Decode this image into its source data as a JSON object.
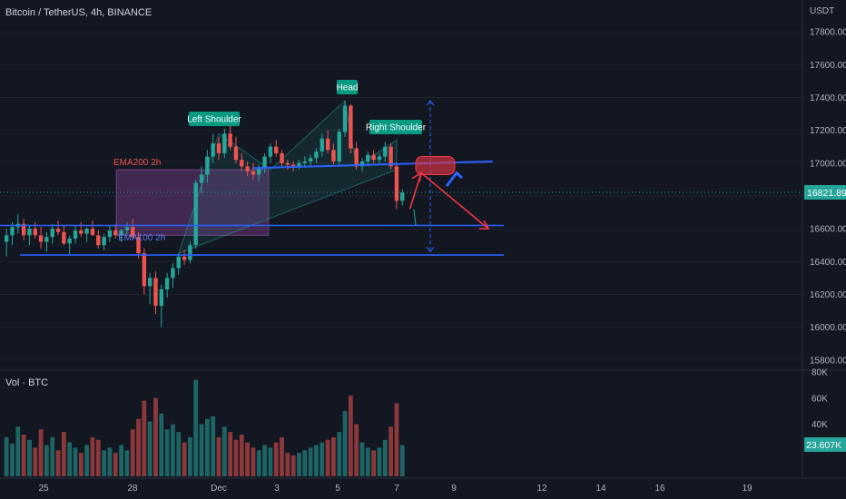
{
  "header": {
    "symbol_title": "Bitcoin / TetherUS, 4h, BINANCE",
    "currency": "USDT"
  },
  "volume_panel": {
    "label": "Vol · BTC",
    "ticks": [
      "80K",
      "60K",
      "40K"
    ],
    "last_value": "23.607K"
  },
  "annotations": {
    "left_shoulder": "Left Shoulder",
    "head": "Head",
    "right_shoulder": "Right Shoulder",
    "ema200": "EMA200 2h",
    "ema100": "EMA100 2h"
  },
  "colors": {
    "background": "#131722",
    "up": "#26a69a",
    "down": "#ef5350",
    "neckline": "#2962ff",
    "arrow": "#f23645",
    "zone": "#7b3f8c"
  },
  "chart_data": {
    "type": "candlestick",
    "price_axis_ticks": [
      17800,
      17600,
      17400,
      17200,
      17000,
      16800,
      16600,
      16400,
      16200,
      16000,
      15800
    ],
    "ylim": [
      15760,
      17950
    ],
    "last_price": 16821.89,
    "last_price_label": "16821.89",
    "x_tick_labels": [
      "25",
      "28",
      "Dec",
      "3",
      "5",
      "7",
      "9",
      "12",
      "14",
      "16",
      "19"
    ],
    "support_levels": [
      16620,
      16440
    ],
    "neckline": [
      16970,
      17010
    ],
    "projection_range": [
      16460,
      17380
    ],
    "volume_range_k": [
      0,
      80
    ],
    "candles": [
      [
        16520,
        16600,
        16430,
        16560,
        30
      ],
      [
        16560,
        16640,
        16500,
        16610,
        25
      ],
      [
        16610,
        16690,
        16570,
        16630,
        38
      ],
      [
        16630,
        16660,
        16530,
        16560,
        32
      ],
      [
        16560,
        16620,
        16500,
        16600,
        28
      ],
      [
        16600,
        16640,
        16540,
        16560,
        22
      ],
      [
        16560,
        16610,
        16480,
        16520,
        36
      ],
      [
        16520,
        16580,
        16460,
        16550,
        24
      ],
      [
        16550,
        16630,
        16510,
        16600,
        30
      ],
      [
        16600,
        16650,
        16560,
        16580,
        20
      ],
      [
        16580,
        16620,
        16500,
        16510,
        34
      ],
      [
        16510,
        16560,
        16440,
        16540,
        26
      ],
      [
        16540,
        16620,
        16510,
        16590,
        22
      ],
      [
        16590,
        16640,
        16550,
        16570,
        18
      ],
      [
        16570,
        16610,
        16520,
        16600,
        24
      ],
      [
        16600,
        16650,
        16560,
        16560,
        30
      ],
      [
        16560,
        16590,
        16480,
        16500,
        28
      ],
      [
        16500,
        16570,
        16470,
        16550,
        20
      ],
      [
        16550,
        16620,
        16520,
        16590,
        22
      ],
      [
        16590,
        16630,
        16540,
        16560,
        18
      ],
      [
        16560,
        16600,
        16520,
        16590,
        24
      ],
      [
        16590,
        16640,
        16560,
        16610,
        20
      ],
      [
        16610,
        16660,
        16540,
        16550,
        36
      ],
      [
        16550,
        16580,
        16420,
        16450,
        44
      ],
      [
        16450,
        16480,
        16200,
        16250,
        58
      ],
      [
        16250,
        16330,
        16140,
        16300,
        42
      ],
      [
        16300,
        16340,
        16080,
        16130,
        60
      ],
      [
        16130,
        16260,
        16000,
        16230,
        48
      ],
      [
        16230,
        16330,
        16180,
        16300,
        36
      ],
      [
        16300,
        16390,
        16240,
        16360,
        40
      ],
      [
        16360,
        16450,
        16320,
        16430,
        34
      ],
      [
        16430,
        16470,
        16380,
        16410,
        26
      ],
      [
        16410,
        16520,
        16390,
        16500,
        30
      ],
      [
        16500,
        16900,
        16480,
        16880,
        74
      ],
      [
        16880,
        16980,
        16820,
        16930,
        40
      ],
      [
        16930,
        17080,
        16880,
        17040,
        44
      ],
      [
        17040,
        17180,
        17000,
        17120,
        46
      ],
      [
        17120,
        17160,
        17020,
        17060,
        30
      ],
      [
        17060,
        17210,
        17030,
        17180,
        38
      ],
      [
        17180,
        17230,
        17080,
        17100,
        34
      ],
      [
        17100,
        17160,
        17000,
        17020,
        28
      ],
      [
        17020,
        17060,
        16950,
        16980,
        32
      ],
      [
        16980,
        17010,
        16920,
        16950,
        26
      ],
      [
        16950,
        17000,
        16900,
        16930,
        22
      ],
      [
        16930,
        16990,
        16890,
        16970,
        20
      ],
      [
        16970,
        17060,
        16940,
        17040,
        24
      ],
      [
        17040,
        17120,
        17000,
        17100,
        22
      ],
      [
        17100,
        17140,
        17040,
        17060,
        26
      ],
      [
        17060,
        17080,
        16980,
        17000,
        30
      ],
      [
        17000,
        17020,
        16960,
        16990,
        18
      ],
      [
        16990,
        17010,
        16950,
        16980,
        16
      ],
      [
        16980,
        17020,
        16960,
        17000,
        18
      ],
      [
        17000,
        17040,
        16970,
        17010,
        20
      ],
      [
        17010,
        17050,
        16980,
        17030,
        22
      ],
      [
        17030,
        17090,
        17000,
        17070,
        24
      ],
      [
        17070,
        17180,
        17040,
        17150,
        26
      ],
      [
        17150,
        17200,
        17060,
        17080,
        28
      ],
      [
        17080,
        17120,
        16990,
        17010,
        30
      ],
      [
        17010,
        17210,
        16990,
        17190,
        34
      ],
      [
        17190,
        17380,
        17160,
        17350,
        50
      ],
      [
        17350,
        17360,
        17060,
        17090,
        62
      ],
      [
        17090,
        17130,
        16960,
        16980,
        40
      ],
      [
        16980,
        17030,
        16950,
        17010,
        26
      ],
      [
        17010,
        17070,
        16980,
        17050,
        22
      ],
      [
        17050,
        17080,
        17000,
        17020,
        20
      ],
      [
        17020,
        17060,
        16990,
        17040,
        22
      ],
      [
        17040,
        17130,
        17010,
        17100,
        28
      ],
      [
        17100,
        17120,
        16960,
        16980,
        38
      ],
      [
        16980,
        17000,
        16720,
        16770,
        56
      ],
      [
        16770,
        16840,
        16740,
        16820,
        24
      ]
    ]
  }
}
